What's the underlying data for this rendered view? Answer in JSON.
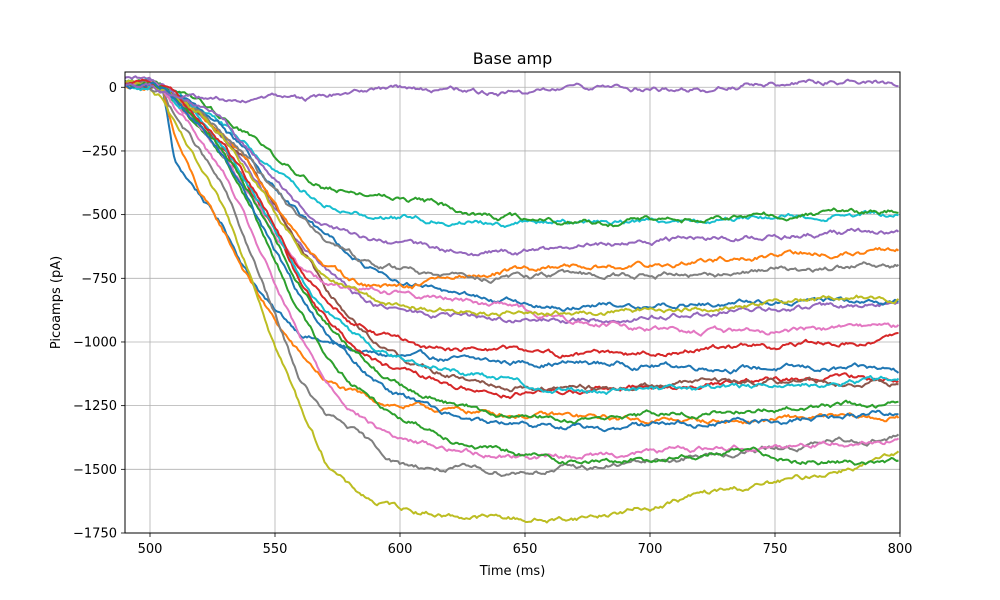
{
  "chart_data": {
    "type": "line",
    "title": "Base amp",
    "xlabel": "Time (ms)",
    "ylabel": "Picoamps (pA)",
    "xlim": [
      490,
      800
    ],
    "ylim": [
      -1750,
      60
    ],
    "xticks": [
      500,
      550,
      600,
      650,
      700,
      750,
      800
    ],
    "yticks": [
      0,
      -250,
      -500,
      -750,
      -1000,
      -1250,
      -1500,
      -1750
    ],
    "xtick_labels": [
      "500",
      "550",
      "600",
      "650",
      "700",
      "750",
      "800"
    ],
    "ytick_labels": [
      "0",
      "−250",
      "−500",
      "−750",
      "−1000",
      "−1250",
      "−1500",
      "−1750"
    ],
    "grid": true,
    "legend": "none",
    "color_cycle": [
      "#1f77b4",
      "#ff7f0e",
      "#2ca02c",
      "#d62728",
      "#9467bd",
      "#8c564b",
      "#e377c2",
      "#7f7f7f",
      "#bcbd22",
      "#17becf"
    ],
    "x": [
      490,
      500,
      505,
      510,
      520,
      530,
      540,
      550,
      560,
      570,
      580,
      590,
      600,
      620,
      640,
      660,
      680,
      700,
      720,
      740,
      760,
      780,
      800
    ],
    "series": [
      {
        "color": "#1f77b4",
        "values": [
          10,
          5,
          0,
          -300,
          -420,
          -560,
          -740,
          -880,
          -960,
          -1000,
          -1030,
          -1050,
          -1060,
          -1070,
          -1080,
          -1080,
          -1085,
          -1090,
          -1095,
          -1100,
          -1105,
          -1110,
          -1110
        ]
      },
      {
        "color": "#ff7f0e",
        "values": [
          5,
          0,
          -20,
          -200,
          -420,
          -580,
          -760,
          -920,
          -1050,
          -1150,
          -1200,
          -1230,
          -1250,
          -1270,
          -1280,
          -1290,
          -1300,
          -1305,
          -1310,
          -1310,
          -1300,
          -1300,
          -1300
        ]
      },
      {
        "color": "#bcbd22",
        "values": [
          0,
          -5,
          -40,
          -150,
          -330,
          -500,
          -720,
          -1000,
          -1250,
          -1460,
          -1570,
          -1630,
          -1650,
          -1680,
          -1690,
          -1700,
          -1680,
          -1650,
          -1600,
          -1570,
          -1540,
          -1490,
          -1450
        ]
      },
      {
        "color": "#7f7f7f",
        "values": [
          10,
          0,
          -20,
          -110,
          -250,
          -410,
          -650,
          -900,
          -1150,
          -1290,
          -1340,
          -1420,
          -1480,
          -1500,
          -1510,
          -1500,
          -1490,
          -1470,
          -1450,
          -1430,
          -1410,
          -1390,
          -1370
        ]
      },
      {
        "color": "#e377c2",
        "values": [
          15,
          10,
          -10,
          -80,
          -200,
          -350,
          -560,
          -780,
          -990,
          -1150,
          -1250,
          -1330,
          -1380,
          -1420,
          -1440,
          -1450,
          -1440,
          -1430,
          -1420,
          -1410,
          -1400,
          -1390,
          -1380
        ]
      },
      {
        "color": "#2ca02c",
        "values": [
          20,
          10,
          -5,
          -60,
          -150,
          -280,
          -460,
          -680,
          -880,
          -1040,
          -1150,
          -1230,
          -1290,
          -1370,
          -1430,
          -1460,
          -1470,
          -1460,
          -1440,
          -1430,
          -1460,
          -1470,
          -1470
        ]
      },
      {
        "color": "#d62728",
        "values": [
          10,
          5,
          0,
          -50,
          -140,
          -250,
          -400,
          -580,
          -760,
          -900,
          -1000,
          -1070,
          -1120,
          -1170,
          -1200,
          -1200,
          -1190,
          -1180,
          -1170,
          -1160,
          -1150,
          -1140,
          -1140
        ]
      },
      {
        "color": "#9467bd",
        "values": [
          30,
          20,
          0,
          -40,
          -110,
          -200,
          -330,
          -480,
          -620,
          -720,
          -800,
          -850,
          -880,
          -900,
          -910,
          -920,
          -910,
          -900,
          -890,
          -880,
          -870,
          -860,
          -860
        ]
      },
      {
        "color": "#8c564b",
        "values": [
          20,
          15,
          5,
          -30,
          -100,
          -190,
          -310,
          -460,
          -620,
          -780,
          -900,
          -990,
          -1060,
          -1130,
          -1160,
          -1180,
          -1180,
          -1170,
          -1160,
          -1150,
          -1150,
          -1160,
          -1170
        ]
      },
      {
        "color": "#17becf",
        "values": [
          25,
          20,
          10,
          -20,
          -80,
          -150,
          -240,
          -330,
          -400,
          -450,
          -480,
          -500,
          -510,
          -520,
          -530,
          -530,
          -525,
          -520,
          -515,
          -510,
          -505,
          -500,
          -500
        ]
      },
      {
        "color": "#2ca02c",
        "values": [
          30,
          25,
          15,
          -10,
          -60,
          -120,
          -190,
          -270,
          -340,
          -390,
          -410,
          -420,
          -430,
          -470,
          -510,
          -530,
          -530,
          -525,
          -520,
          -510,
          -500,
          -490,
          -480
        ]
      },
      {
        "color": "#1f77b4",
        "values": [
          20,
          15,
          5,
          -30,
          -90,
          -170,
          -270,
          -390,
          -500,
          -590,
          -660,
          -720,
          -760,
          -810,
          -840,
          -860,
          -860,
          -855,
          -850,
          -845,
          -840,
          -835,
          -830
        ]
      },
      {
        "color": "#ff7f0e",
        "values": [
          15,
          10,
          0,
          -40,
          -100,
          -190,
          -310,
          -460,
          -600,
          -700,
          -760,
          -780,
          -790,
          -760,
          -730,
          -710,
          -700,
          -690,
          -680,
          -670,
          -660,
          -650,
          -640
        ]
      },
      {
        "color": "#9467bd",
        "values": [
          25,
          20,
          5,
          -25,
          -80,
          -150,
          -250,
          -370,
          -470,
          -540,
          -580,
          -610,
          -630,
          -650,
          -650,
          -640,
          -620,
          -600,
          -590,
          -580,
          -580,
          -570,
          -560
        ]
      },
      {
        "color": "#e377c2",
        "values": [
          10,
          5,
          -10,
          -60,
          -150,
          -280,
          -430,
          -580,
          -700,
          -760,
          -790,
          -800,
          -810,
          -830,
          -860,
          -900,
          -930,
          -950,
          -960,
          -960,
          -950,
          -950,
          -940
        ]
      },
      {
        "color": "#17becf",
        "values": [
          15,
          10,
          0,
          -50,
          -130,
          -240,
          -390,
          -560,
          -730,
          -870,
          -960,
          -1020,
          -1060,
          -1110,
          -1150,
          -1180,
          -1190,
          -1190,
          -1190,
          -1180,
          -1170,
          -1160,
          -1150
        ]
      },
      {
        "color": "#7f7f7f",
        "values": [
          20,
          15,
          5,
          -30,
          -90,
          -180,
          -290,
          -420,
          -530,
          -610,
          -660,
          -700,
          -720,
          -740,
          -750,
          -750,
          -745,
          -740,
          -735,
          -730,
          -720,
          -710,
          -700
        ]
      },
      {
        "color": "#bcbd22",
        "values": [
          20,
          15,
          0,
          -35,
          -100,
          -200,
          -340,
          -500,
          -640,
          -740,
          -800,
          -840,
          -860,
          -880,
          -890,
          -890,
          -880,
          -870,
          -860,
          -850,
          -840,
          -830,
          -820
        ]
      },
      {
        "color": "#d62728",
        "values": [
          15,
          10,
          0,
          -40,
          -120,
          -230,
          -380,
          -560,
          -720,
          -840,
          -920,
          -970,
          -1000,
          -1030,
          -1040,
          -1050,
          -1050,
          -1040,
          -1030,
          -1020,
          -1010,
          -1000,
          -990
        ]
      },
      {
        "color": "#2ca02c",
        "values": [
          10,
          5,
          -5,
          -50,
          -140,
          -260,
          -420,
          -600,
          -780,
          -920,
          -1030,
          -1110,
          -1170,
          -1240,
          -1280,
          -1300,
          -1300,
          -1290,
          -1280,
          -1270,
          -1260,
          -1250,
          -1240
        ]
      },
      {
        "color": "#1f77b4",
        "values": [
          10,
          5,
          -5,
          -55,
          -150,
          -280,
          -450,
          -640,
          -820,
          -960,
          -1070,
          -1150,
          -1210,
          -1280,
          -1320,
          -1340,
          -1340,
          -1330,
          -1320,
          -1310,
          -1300,
          -1290,
          -1280
        ]
      },
      {
        "color": "#9467bd",
        "values": [
          5,
          0,
          -10,
          -30,
          -50,
          -45,
          -55,
          -50,
          -60,
          -40,
          -30,
          -20,
          -10,
          -10,
          -20,
          -15,
          -5,
          0,
          -10,
          10,
          20,
          25,
          20
        ]
      }
    ]
  }
}
